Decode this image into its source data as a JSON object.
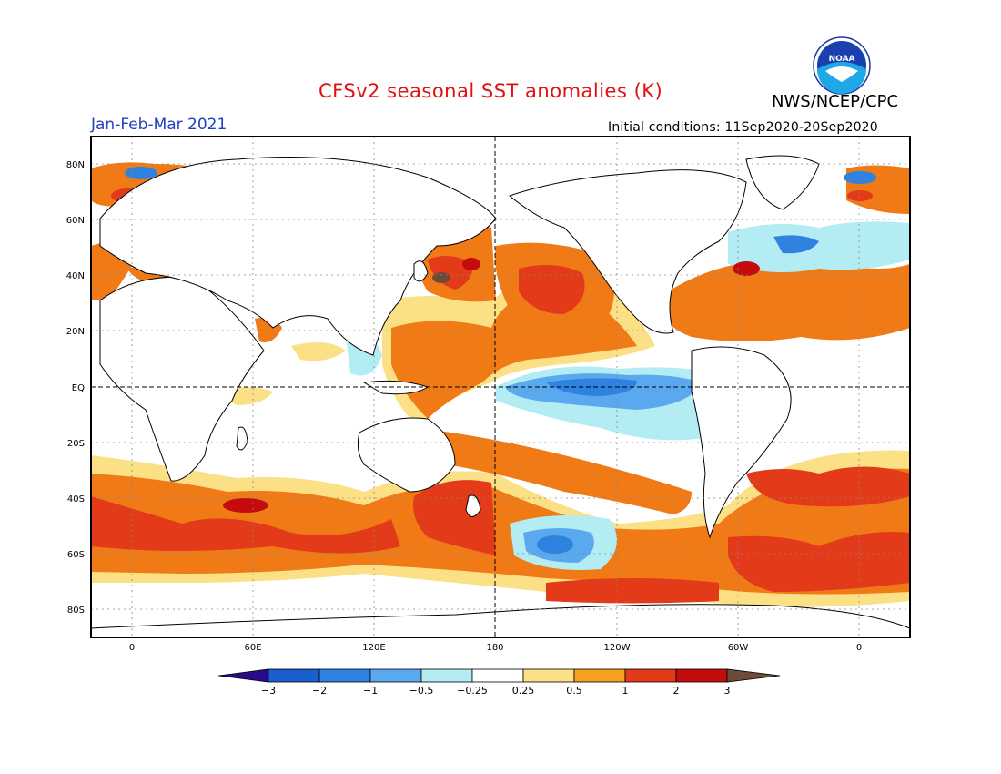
{
  "header": {
    "title": "CFSv2 seasonal SST anomalies (K)",
    "agency": "NWS/NCEP/CPC",
    "logo_text": "NOAA",
    "period": "Jan-Feb-Mar 2021",
    "initial_conditions": "Initial conditions: 11Sep2020-20Sep2020"
  },
  "axes": {
    "lat_labels": [
      "80N",
      "60N",
      "40N",
      "20N",
      "EQ",
      "20S",
      "40S",
      "60S",
      "80S"
    ],
    "lon_labels": [
      "0",
      "60E",
      "120E",
      "180",
      "120W",
      "60W",
      "0"
    ]
  },
  "colorbar": {
    "labels": [
      "-3",
      "-2",
      "-1",
      "-0.5",
      "-0.25",
      "0.25",
      "0.5",
      "1",
      "2",
      "3"
    ],
    "colors": [
      "#2a0a8a",
      "#1a5fd0",
      "#2f82e0",
      "#5aa8ee",
      "#b4ecf4",
      "#ffffff",
      "#fbe085",
      "#f5a020",
      "#e33a1a",
      "#c40c0c",
      "#6e4a38"
    ]
  },
  "colors": {
    "title": "#e01010",
    "period": "#2040c0",
    "warm_weak": "#fbe085",
    "warm": "#f07a16",
    "warm_strong": "#e33a1a",
    "warm_extreme": "#c40c0c",
    "cool_weak": "#b4ecf4",
    "cool": "#5aa8ee",
    "cool_strong": "#2f82e0"
  }
}
